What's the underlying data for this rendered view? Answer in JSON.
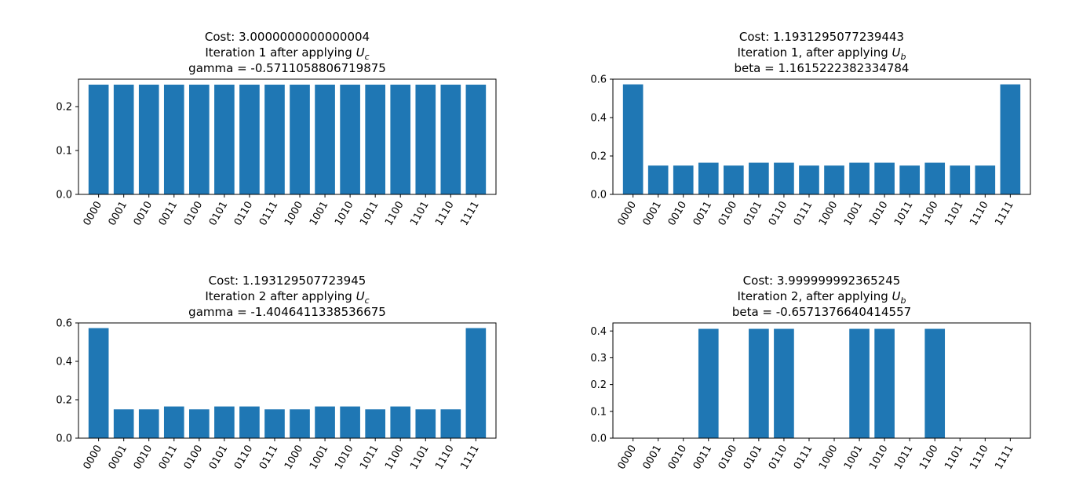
{
  "figure": {
    "panel_count": 4
  },
  "chart_data": [
    {
      "type": "bar",
      "title_lines": [
        "Cost: 3.0000000000000004",
        "Iteration 1 after applying ",
        "gamma = -0.5711058806719875"
      ],
      "title_operator": {
        "base": "U",
        "sub": "c"
      },
      "categories": [
        "0000",
        "0001",
        "0010",
        "0011",
        "0100",
        "0101",
        "0110",
        "0111",
        "1000",
        "1001",
        "1010",
        "1011",
        "1100",
        "1101",
        "1110",
        "1111"
      ],
      "values": [
        0.25,
        0.25,
        0.25,
        0.25,
        0.25,
        0.25,
        0.25,
        0.25,
        0.25,
        0.25,
        0.25,
        0.25,
        0.25,
        0.25,
        0.25,
        0.25
      ],
      "ylim": [
        0,
        0.2625
      ],
      "yticks": [
        0.0,
        0.1,
        0.2
      ],
      "ytick_labels": [
        "0.0",
        "0.1",
        "0.2"
      ],
      "color": "#1f77b4"
    },
    {
      "type": "bar",
      "title_lines": [
        "Cost: 1.1931295077239443",
        "Iteration 1, after applying ",
        "beta = 1.1615222382334784"
      ],
      "title_operator": {
        "base": "U",
        "sub": "b"
      },
      "categories": [
        "0000",
        "0001",
        "0010",
        "0011",
        "0100",
        "0101",
        "0110",
        "0111",
        "1000",
        "1001",
        "1010",
        "1011",
        "1100",
        "1101",
        "1110",
        "1111"
      ],
      "values": [
        0.573,
        0.15,
        0.15,
        0.165,
        0.15,
        0.165,
        0.165,
        0.15,
        0.15,
        0.165,
        0.165,
        0.15,
        0.165,
        0.15,
        0.15,
        0.573
      ],
      "ylim": [
        0,
        0.6
      ],
      "yticks": [
        0.0,
        0.2,
        0.4,
        0.6
      ],
      "ytick_labels": [
        "0.0",
        "0.2",
        "0.4",
        "0.6"
      ],
      "color": "#1f77b4"
    },
    {
      "type": "bar",
      "title_lines": [
        "Cost: 1.193129507723945",
        "Iteration 2 after applying ",
        "gamma = -1.4046411338536675"
      ],
      "title_operator": {
        "base": "U",
        "sub": "c"
      },
      "categories": [
        "0000",
        "0001",
        "0010",
        "0011",
        "0100",
        "0101",
        "0110",
        "0111",
        "1000",
        "1001",
        "1010",
        "1011",
        "1100",
        "1101",
        "1110",
        "1111"
      ],
      "values": [
        0.573,
        0.15,
        0.15,
        0.165,
        0.15,
        0.165,
        0.165,
        0.15,
        0.15,
        0.165,
        0.165,
        0.15,
        0.165,
        0.15,
        0.15,
        0.573
      ],
      "ylim": [
        0,
        0.6
      ],
      "yticks": [
        0.0,
        0.2,
        0.4,
        0.6
      ],
      "ytick_labels": [
        "0.0",
        "0.2",
        "0.4",
        "0.6"
      ],
      "color": "#1f77b4"
    },
    {
      "type": "bar",
      "title_lines": [
        "Cost: 3.999999992365245",
        "Iteration 2, after applying ",
        "beta = -0.6571376640414557"
      ],
      "title_operator": {
        "base": "U",
        "sub": "b"
      },
      "categories": [
        "0000",
        "0001",
        "0010",
        "0011",
        "0100",
        "0101",
        "0110",
        "0111",
        "1000",
        "1001",
        "1010",
        "1011",
        "1100",
        "1101",
        "1110",
        "1111"
      ],
      "values": [
        0,
        0,
        0,
        0.408,
        0,
        0.408,
        0.408,
        0,
        0,
        0.408,
        0.408,
        0,
        0.408,
        0,
        0,
        0
      ],
      "ylim": [
        0,
        0.43
      ],
      "yticks": [
        0.0,
        0.1,
        0.2,
        0.3,
        0.4
      ],
      "ytick_labels": [
        "0.0",
        "0.1",
        "0.2",
        "0.3",
        "0.4"
      ],
      "color": "#1f77b4"
    }
  ]
}
